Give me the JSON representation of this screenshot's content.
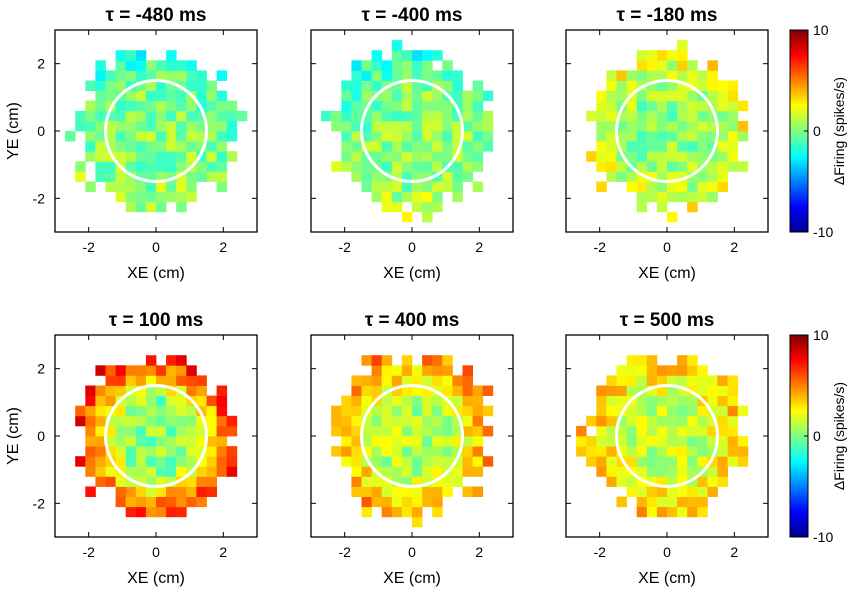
{
  "chart_data": [
    {
      "type": "heatmap",
      "title": "τ = -480 ms",
      "tau_ms": -480,
      "xlabel": "XE (cm)",
      "ylabel": "YE (cm)",
      "xlim": [
        -3,
        3
      ],
      "ylim": [
        -3,
        3
      ],
      "xticks": [
        "-2",
        "0",
        "2"
      ],
      "yticks": [
        "2",
        "0",
        "-2"
      ],
      "grid": false,
      "colorbar": false,
      "edge_bias": -0.6,
      "top_bias": -1.5,
      "bottom_bias": 2.0,
      "base": 0.1,
      "overlay_circle_radius": 1.5
    },
    {
      "type": "heatmap",
      "title": "τ = -400 ms",
      "tau_ms": -400,
      "xlabel": "XE (cm)",
      "ylabel": "",
      "xlim": [
        -3,
        3
      ],
      "ylim": [
        -3,
        3
      ],
      "xticks": [
        "-2",
        "0",
        "2"
      ],
      "yticks": [
        "2",
        "0",
        "-2"
      ],
      "grid": false,
      "colorbar": false,
      "edge_bias": -0.3,
      "top_bias": -1.2,
      "bottom_bias": 2.5,
      "base": 0.1,
      "overlay_circle_radius": 1.5
    },
    {
      "type": "heatmap",
      "title": "τ = -180 ms",
      "tau_ms": -180,
      "xlabel": "XE (cm)",
      "ylabel": "",
      "xlim": [
        -3,
        3
      ],
      "ylim": [
        -3,
        3
      ],
      "xticks": [
        "-2",
        "0",
        "2"
      ],
      "yticks": [
        "2",
        "0",
        "-2"
      ],
      "grid": false,
      "colorbar": true,
      "edge_bias": 2.0,
      "top_bias": 1.0,
      "bottom_bias": 0.5,
      "base": 0.2,
      "overlay_circle_radius": 1.5
    },
    {
      "type": "heatmap",
      "title": "τ = 100 ms",
      "tau_ms": 100,
      "xlabel": "XE (cm)",
      "ylabel": "YE (cm)",
      "xlim": [
        -3,
        3
      ],
      "ylim": [
        -3,
        3
      ],
      "xticks": [
        "-2",
        "0",
        "2"
      ],
      "yticks": [
        "2",
        "0",
        "-2"
      ],
      "grid": false,
      "colorbar": false,
      "edge_bias": 6.5,
      "top_bias": 1.5,
      "bottom_bias": 0.5,
      "base": 0.3,
      "overlay_circle_radius": 1.5
    },
    {
      "type": "heatmap",
      "title": "τ = 400 ms",
      "tau_ms": 400,
      "xlabel": "XE (cm)",
      "ylabel": "",
      "xlim": [
        -3,
        3
      ],
      "ylim": [
        -3,
        3
      ],
      "xticks": [
        "-2",
        "0",
        "2"
      ],
      "yticks": [
        "2",
        "0",
        "-2"
      ],
      "grid": false,
      "colorbar": false,
      "edge_bias": 3.5,
      "top_bias": 1.0,
      "bottom_bias": 0.5,
      "base": 1.0,
      "overlay_circle_radius": 1.5
    },
    {
      "type": "heatmap",
      "title": "τ = 500 ms",
      "tau_ms": 500,
      "xlabel": "XE (cm)",
      "ylabel": "",
      "xlim": [
        -3,
        3
      ],
      "ylim": [
        -3,
        3
      ],
      "xticks": [
        "-2",
        "0",
        "2"
      ],
      "yticks": [
        "2",
        "0",
        "-2"
      ],
      "grid": false,
      "colorbar": true,
      "edge_bias": 2.5,
      "top_bias": 0.5,
      "bottom_bias": 0.5,
      "base": 1.2,
      "overlay_circle_radius": 1.5
    }
  ],
  "colorbar": {
    "label": "ΔFiring (spikes/s)",
    "range": [
      -10,
      10
    ],
    "ticks": [
      "10",
      "0",
      "-10"
    ],
    "colormap": "jet"
  },
  "colors": {
    "circle": "#ffffff",
    "axes": "#000000",
    "background": "#ffffff"
  }
}
